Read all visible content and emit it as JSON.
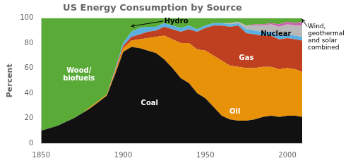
{
  "chart_data": {
    "type": "area",
    "stacked": true,
    "title": "US Energy Consumption by Source",
    "ylabel": "Percent",
    "x": [
      1850,
      1855,
      1860,
      1865,
      1870,
      1875,
      1880,
      1885,
      1890,
      1895,
      1900,
      1905,
      1910,
      1915,
      1920,
      1925,
      1930,
      1935,
      1940,
      1945,
      1950,
      1955,
      1960,
      1965,
      1970,
      1975,
      1980,
      1985,
      1990,
      1995,
      2000,
      2005,
      2009
    ],
    "series": [
      {
        "color": "#111111",
        "values": [
          10,
          12,
          14,
          17,
          20,
          24,
          28,
          33,
          38,
          55,
          73,
          77,
          76,
          74,
          72,
          67,
          60,
          52,
          48,
          40,
          36,
          29,
          22,
          19,
          18,
          18,
          19,
          21,
          22,
          21,
          22,
          22,
          21
        ]
      },
      {
        "color": "#e8920a",
        "values": [
          0,
          0,
          0,
          0,
          0,
          0,
          1,
          1,
          1,
          2,
          3,
          5,
          7,
          10,
          13,
          19,
          23,
          28,
          32,
          35,
          38,
          41,
          44,
          43,
          43,
          42,
          41,
          40,
          39,
          38,
          38,
          37,
          36
        ]
      },
      {
        "color": "#bf4020",
        "values": [
          0,
          0,
          0,
          0,
          0,
          0,
          0,
          0,
          0,
          1,
          2,
          3,
          4,
          5,
          5,
          7,
          8,
          9,
          11,
          14,
          18,
          24,
          28,
          31,
          33,
          28,
          27,
          25,
          25,
          24,
          24,
          24,
          25
        ]
      },
      {
        "color": "#5ab0e0",
        "values": [
          0,
          0,
          0,
          0,
          0,
          0,
          0,
          0,
          0,
          1,
          2,
          4,
          5,
          4,
          3,
          3,
          3,
          3,
          3,
          2,
          2,
          2,
          2,
          2,
          2,
          3,
          3,
          3,
          3,
          3,
          3,
          3,
          3
        ]
      },
      {
        "color": "#b8b8b8",
        "values": [
          0,
          0,
          0,
          0,
          0,
          0,
          0,
          0,
          0,
          0,
          0,
          0,
          0,
          0,
          0,
          0,
          0,
          0,
          0,
          0,
          0,
          0,
          0,
          1,
          1,
          3,
          4,
          5,
          6,
          7,
          8,
          8,
          9
        ]
      },
      {
        "color": "#d060b0",
        "values": [
          0,
          0,
          0,
          0,
          0,
          0,
          0,
          0,
          0,
          0,
          0,
          0,
          0,
          0,
          0,
          0,
          0,
          0,
          0,
          0,
          0,
          0,
          0,
          0,
          0,
          0,
          1,
          1,
          1,
          2,
          2,
          2,
          3
        ]
      },
      {
        "color": "#5aaa38",
        "values": [
          90,
          88,
          86,
          83,
          80,
          76,
          71,
          66,
          61,
          41,
          20,
          11,
          8,
          7,
          7,
          4,
          6,
          8,
          6,
          9,
          6,
          4,
          4,
          4,
          3,
          6,
          5,
          5,
          4,
          5,
          3,
          4,
          3
        ]
      }
    ],
    "xlim": [
      1850,
      2009
    ],
    "xticks": [
      1850,
      1900,
      1950,
      2000
    ],
    "ylim": [
      0,
      100
    ],
    "yticks": [
      0,
      20,
      40,
      60,
      80,
      100
    ],
    "grid": false,
    "annotations": [
      {
        "text": "Wood/\nbiofuels",
        "x": 1873,
        "y": 55,
        "color": "#ffffff"
      },
      {
        "text": "Coal",
        "x": 1916,
        "y": 32,
        "color": "#ffffff"
      },
      {
        "text": "Oil",
        "x": 1968,
        "y": 25,
        "color": "#ffffff"
      },
      {
        "text": "Gas",
        "x": 1975,
        "y": 68,
        "color": "#ffffff"
      },
      {
        "text": "Nuclear",
        "x": 1993,
        "y": 87,
        "color": "#000000"
      },
      {
        "text": "Hydro",
        "x": 1925,
        "y": 97.5,
        "color": "#000000",
        "arrow_to": [
          1905,
          93.5
        ]
      },
      {
        "text": "Wind,\ngeothermal\nand solar\ncombined",
        "color": "#000000",
        "arrow_to": [
          2009,
          99
        ]
      }
    ]
  }
}
